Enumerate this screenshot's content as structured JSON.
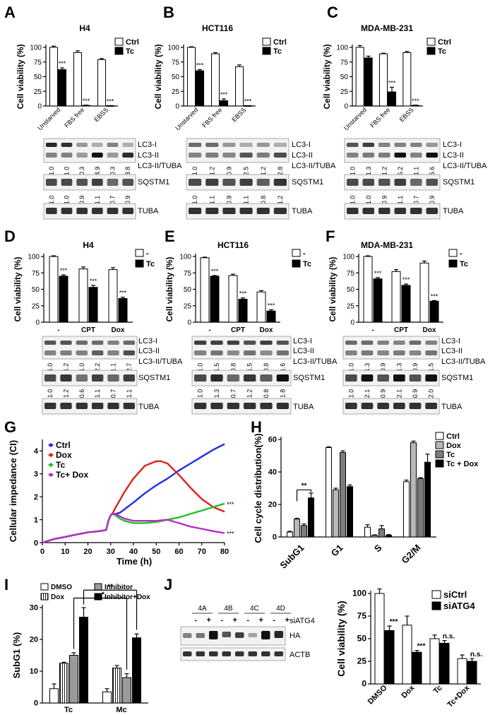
{
  "panels": {
    "A": {
      "label": "A",
      "title": "H4"
    },
    "B": {
      "label": "B",
      "title": "HCT116"
    },
    "C": {
      "label": "C",
      "title": "MDA-MB-231"
    },
    "D": {
      "label": "D",
      "title": "H4"
    },
    "E": {
      "label": "E",
      "title": "HCT116"
    },
    "F": {
      "label": "F",
      "title": "MDA-MB-231"
    },
    "G": {
      "label": "G"
    },
    "H": {
      "label": "H"
    },
    "I": {
      "label": "I"
    },
    "J": {
      "label": "J"
    }
  },
  "chart_data": [
    {
      "id": "A",
      "type": "bar",
      "title": "H4",
      "ylabel": "Cell viability (%)",
      "ylim": [
        0,
        100
      ],
      "yticks": [
        "0",
        "25",
        "50",
        "75",
        "100"
      ],
      "categories": [
        "Unstarved",
        "FBS free",
        "EBSS"
      ],
      "series": [
        {
          "name": "Ctrl",
          "values": [
            100,
            91,
            79
          ],
          "errors": [
            2,
            3,
            2
          ]
        },
        {
          "name": "Tc",
          "values": [
            62,
            1,
            0
          ],
          "errors": [
            3,
            0.5,
            0.5
          ]
        }
      ],
      "annotations": [
        [
          "***",
          "***",
          "***"
        ]
      ]
    },
    {
      "id": "B",
      "type": "bar",
      "title": "HCT116",
      "ylabel": "Cell viability (%)",
      "ylim": [
        0,
        100
      ],
      "yticks": [
        "0",
        "25",
        "50",
        "75",
        "100"
      ],
      "categories": [
        "Unstarved",
        "FBS free",
        "EBSS"
      ],
      "series": [
        {
          "name": "Ctrl",
          "values": [
            100,
            89,
            67
          ],
          "errors": [
            1,
            2,
            3
          ]
        },
        {
          "name": "Tc",
          "values": [
            60,
            9,
            0
          ],
          "errors": [
            2,
            3,
            0.5
          ]
        }
      ],
      "annotations": [
        [
          "***",
          "***",
          "***"
        ]
      ]
    },
    {
      "id": "C",
      "type": "bar",
      "title": "MDA-MB-231",
      "ylabel": "Cell viability (%)",
      "ylim": [
        0,
        100
      ],
      "yticks": [
        "0",
        "25",
        "50",
        "75",
        "100"
      ],
      "categories": [
        "Unstarved",
        "FBS free",
        "EBSS"
      ],
      "series": [
        {
          "name": "Ctrl",
          "values": [
            100,
            89,
            91
          ],
          "errors": [
            3,
            1,
            2
          ]
        },
        {
          "name": "Tc",
          "values": [
            82,
            24,
            1
          ],
          "errors": [
            3,
            8,
            0.5
          ]
        }
      ],
      "annotations": [
        [
          "",
          "***",
          "***"
        ]
      ]
    },
    {
      "id": "D",
      "type": "bar",
      "title": "H4",
      "ylabel": "Cell viability (%)",
      "ylim": [
        0,
        100
      ],
      "yticks": [
        "0",
        "25",
        "50",
        "75",
        "100"
      ],
      "categories": [
        "-",
        "CPT",
        "Dox"
      ],
      "series": [
        {
          "name": "-",
          "values": [
            100,
            81,
            80
          ],
          "errors": [
            1,
            3,
            3
          ]
        },
        {
          "name": "Tc",
          "values": [
            70,
            53,
            36
          ],
          "errors": [
            2,
            3,
            2
          ]
        }
      ],
      "annotations": [
        [
          "***",
          "***",
          "***"
        ]
      ]
    },
    {
      "id": "E",
      "type": "bar",
      "title": "HCT116",
      "ylabel": "Cell viability (%)",
      "ylim": [
        0,
        100
      ],
      "yticks": [
        "0",
        "25",
        "50",
        "75",
        "100"
      ],
      "categories": [
        "-",
        "CPT",
        "Dox"
      ],
      "series": [
        {
          "name": "-",
          "values": [
            98,
            71,
            46
          ],
          "errors": [
            1,
            2,
            2
          ]
        },
        {
          "name": "Tc",
          "values": [
            70,
            35,
            17
          ],
          "errors": [
            1,
            2,
            2
          ]
        }
      ],
      "annotations": [
        [
          "***",
          "***",
          "***"
        ]
      ]
    },
    {
      "id": "F",
      "type": "bar",
      "title": "MDA-MB-231",
      "ylabel": "Cell viability (%)",
      "ylim": [
        0,
        100
      ],
      "yticks": [
        "0",
        "25",
        "50",
        "75",
        "100"
      ],
      "categories": [
        "-",
        "CPT",
        "Dox"
      ],
      "series": [
        {
          "name": "-",
          "values": [
            100,
            77,
            90
          ],
          "errors": [
            1,
            3,
            3
          ]
        },
        {
          "name": "Tc",
          "values": [
            66,
            56,
            32
          ],
          "errors": [
            2,
            2,
            1
          ]
        }
      ],
      "annotations": [
        [
          "***",
          "***",
          "***"
        ]
      ]
    },
    {
      "id": "G",
      "type": "line",
      "ylabel": "Cellular impedance (CI)",
      "xlabel": "Time (h)",
      "xlim": [
        0,
        80
      ],
      "ylim": [
        0,
        4.5
      ],
      "xticks": [
        0,
        10,
        20,
        30,
        40,
        50,
        60,
        70,
        80
      ],
      "yticks": [
        0,
        1,
        2,
        3,
        4
      ],
      "series": [
        {
          "name": "Ctrl",
          "color": "#1f2ee0",
          "x": [
            0,
            5,
            10,
            15,
            20,
            25,
            28,
            29,
            30,
            31,
            32,
            34,
            36,
            40,
            45,
            50,
            55,
            60,
            65,
            70,
            75,
            80
          ],
          "y": [
            0,
            0.15,
            0.25,
            0.35,
            0.45,
            0.5,
            0.55,
            0.95,
            1.2,
            1.25,
            1.25,
            1.3,
            1.45,
            1.75,
            2.15,
            2.5,
            2.8,
            3.15,
            3.45,
            3.75,
            4.05,
            4.3
          ]
        },
        {
          "name": "Dox",
          "color": "#e02020",
          "x": [
            0,
            5,
            10,
            15,
            20,
            25,
            28,
            29,
            30,
            31,
            32,
            34,
            36,
            40,
            45,
            50,
            52,
            55,
            60,
            65,
            70,
            75,
            80
          ],
          "y": [
            0,
            0.15,
            0.25,
            0.35,
            0.45,
            0.5,
            0.55,
            0.95,
            1.2,
            1.3,
            1.5,
            1.85,
            2.2,
            2.8,
            3.35,
            3.55,
            3.55,
            3.45,
            2.95,
            2.4,
            1.9,
            1.55,
            1.35
          ]
        },
        {
          "name": "Tc",
          "color": "#1fbf2a",
          "x": [
            0,
            5,
            10,
            15,
            20,
            25,
            28,
            29,
            30,
            31,
            32,
            34,
            36,
            40,
            45,
            50,
            55,
            60,
            65,
            70,
            75,
            80
          ],
          "y": [
            0,
            0.15,
            0.25,
            0.35,
            0.45,
            0.5,
            0.55,
            0.95,
            1.2,
            1.25,
            1.2,
            1.05,
            0.95,
            0.85,
            0.85,
            0.9,
            1.0,
            1.1,
            1.25,
            1.4,
            1.55,
            1.7
          ]
        },
        {
          "name": "Tc+ Dox",
          "color": "#b030c0",
          "x": [
            0,
            5,
            10,
            15,
            20,
            25,
            28,
            29,
            30,
            31,
            32,
            34,
            36,
            40,
            45,
            50,
            55,
            60,
            65,
            70,
            75,
            80
          ],
          "y": [
            0,
            0.15,
            0.25,
            0.35,
            0.45,
            0.5,
            0.55,
            0.95,
            1.2,
            1.25,
            1.25,
            1.15,
            1.05,
            0.95,
            0.95,
            0.95,
            1.0,
            0.85,
            0.7,
            0.6,
            0.5,
            0.42
          ]
        }
      ],
      "annotations": [
        {
          "series": "Tc",
          "text": "***"
        },
        {
          "series": "Tc+ Dox",
          "text": "***"
        }
      ]
    },
    {
      "id": "H",
      "type": "bar",
      "ylabel": "Cell cycle distribution(%)",
      "ylim": [
        0,
        60
      ],
      "yticks": [
        "0",
        "20",
        "40",
        "60"
      ],
      "categories": [
        "SubG1",
        "G1",
        "S",
        "G2/M"
      ],
      "series": [
        {
          "name": "Ctrl",
          "values": [
            3,
            55,
            6,
            34
          ],
          "errors": [
            0.5,
            0.5,
            1.5,
            1
          ]
        },
        {
          "name": "Dox",
          "values": [
            11,
            29,
            1,
            58
          ],
          "errors": [
            0.5,
            1,
            0.3,
            1
          ]
        },
        {
          "name": "Tc",
          "values": [
            7,
            52,
            5,
            36
          ],
          "errors": [
            1,
            1,
            2,
            0.5
          ]
        },
        {
          "name": "Tc + Dox",
          "values": [
            24,
            31,
            1,
            46
          ],
          "errors": [
            3,
            1,
            0.5,
            5
          ]
        }
      ],
      "annotations": [
        {
          "text": "**",
          "between": [
            "Dox",
            "Tc + Dox"
          ],
          "category": "SubG1"
        }
      ]
    },
    {
      "id": "I",
      "type": "bar",
      "ylabel": "SubG1 (%)",
      "ylim": [
        0,
        30
      ],
      "yticks": [
        "0",
        "10",
        "20",
        "30"
      ],
      "categories": [
        "Tc",
        "Mc"
      ],
      "series": [
        {
          "name": "DMSO",
          "values": [
            4.5,
            3.5
          ],
          "errors": [
            1.5,
            1
          ]
        },
        {
          "name": "Dox",
          "values": [
            12.5,
            11
          ],
          "errors": [
            0.3,
            0.8
          ]
        },
        {
          "name": "Inhibitor",
          "values": [
            15,
            8
          ],
          "errors": [
            0.8,
            1.2
          ]
        },
        {
          "name": "Inhibitor+Dox",
          "values": [
            27,
            20.5
          ],
          "errors": [
            3,
            1.2
          ]
        }
      ],
      "annotations": [
        "**",
        "*"
      ]
    },
    {
      "id": "J",
      "type": "bar",
      "ylabel": "Cell viability (%)",
      "ylim": [
        0,
        100
      ],
      "yticks": [
        "0",
        "25",
        "50",
        "75",
        "100"
      ],
      "categories": [
        "DMSO",
        "Dox",
        "Tc",
        "Tc+Dox"
      ],
      "series": [
        {
          "name": "siCtrl",
          "values": [
            100,
            65,
            50,
            28
          ],
          "errors": [
            5,
            10,
            4,
            4
          ]
        },
        {
          "name": "siATG4",
          "values": [
            59,
            35,
            45,
            25
          ],
          "errors": [
            5,
            2,
            3,
            3
          ]
        }
      ],
      "annotations": [
        [
          "***",
          "***",
          "n.s.",
          "n.s."
        ]
      ]
    }
  ],
  "blots": {
    "A": {
      "lc3_label_1": "LC3-I",
      "lc3_label_2": "LC3-II",
      "ratio_label": "LC3-II/TUBA",
      "ratios": [
        "1.0",
        "1.0",
        "0.3",
        "4.9",
        "0.3",
        "3.8"
      ],
      "sq_label": "SQSTM1",
      "sq_ratios": [
        "1.0",
        "1.0",
        "0.9",
        "1.1",
        "0.7",
        "0.9"
      ],
      "tuba_label": "TUBA"
    },
    "B": {
      "lc3_label_1": "LC3-I",
      "lc3_label_2": "LC3-II",
      "ratio_label": "LC3-II/TUBA",
      "ratios": [
        "1.0",
        "1.2",
        "0.9",
        "2.5",
        "1.2",
        "2.8"
      ],
      "sq_label": "SQSTM1",
      "sq_ratios": [
        "1.0",
        "1.1",
        "0.9",
        "1.1",
        "0.8",
        "1.2"
      ],
      "tuba_label": "TUBA"
    },
    "C": {
      "lc3_label_1": "LC3-I",
      "lc3_label_2": "LC3-II",
      "ratio_label": "LC3-II/TUBA",
      "ratios": [
        "1.0",
        "1.3",
        "1.2",
        "5.2",
        "1.1",
        "5.6"
      ],
      "sq_label": "SQSTM1",
      "sq_ratios": [
        "1.0",
        "1.0",
        "0.9",
        "1.1",
        "0.7",
        "0.9"
      ],
      "tuba_label": "TUBA"
    },
    "D": {
      "lc3_label_1": "LC3-I",
      "lc3_label_2": "LC3-II",
      "ratio_label": "LC3-II/TUBA",
      "ratios": [
        "1.0",
        "1.2",
        "1.0",
        "2.2",
        "1.1",
        "2.7"
      ],
      "sq_label": "SQSTM1",
      "sq_ratios": [
        "1.0",
        "1.2",
        "0.6",
        "1.1",
        "0.7",
        "1.1"
      ],
      "tuba_label": "TUBA"
    },
    "E": {
      "lc3_label_1": "LC3-I",
      "lc3_label_2": "LC3-II",
      "ratio_label": "LC3-II/TUBA",
      "ratios": [
        "1.0",
        "1.5",
        "0.8",
        "1.5",
        "0.8",
        "1.6"
      ],
      "sq_label": "SQSTM1",
      "sq_ratios": [
        "1.0",
        "1.3",
        "0.7",
        "1.2",
        "0.8",
        "1.8"
      ],
      "tuba_label": "TUBA"
    },
    "F": {
      "lc3_label_1": "LC3-I",
      "lc3_label_2": "LC3-II",
      "ratio_label": "LC3-II/TUBA",
      "ratios": [
        "1.0",
        "1.3",
        "0.9",
        "1.3",
        "0.9",
        "1.5"
      ],
      "sq_label": "SQSTM1",
      "sq_ratios": [
        "1.0",
        "2.1",
        "0.9",
        "2.1",
        "0.9",
        "2.0"
      ],
      "tuba_label": "TUBA"
    },
    "J": {
      "groups": [
        "4A",
        "4B",
        "4C",
        "4D"
      ],
      "signs": [
        "-",
        "+",
        "-",
        "+",
        "-",
        "+",
        "-",
        "+"
      ],
      "siatg4_label": "siATG4",
      "ha_label": "HA",
      "actb_label": "ACTB"
    }
  }
}
